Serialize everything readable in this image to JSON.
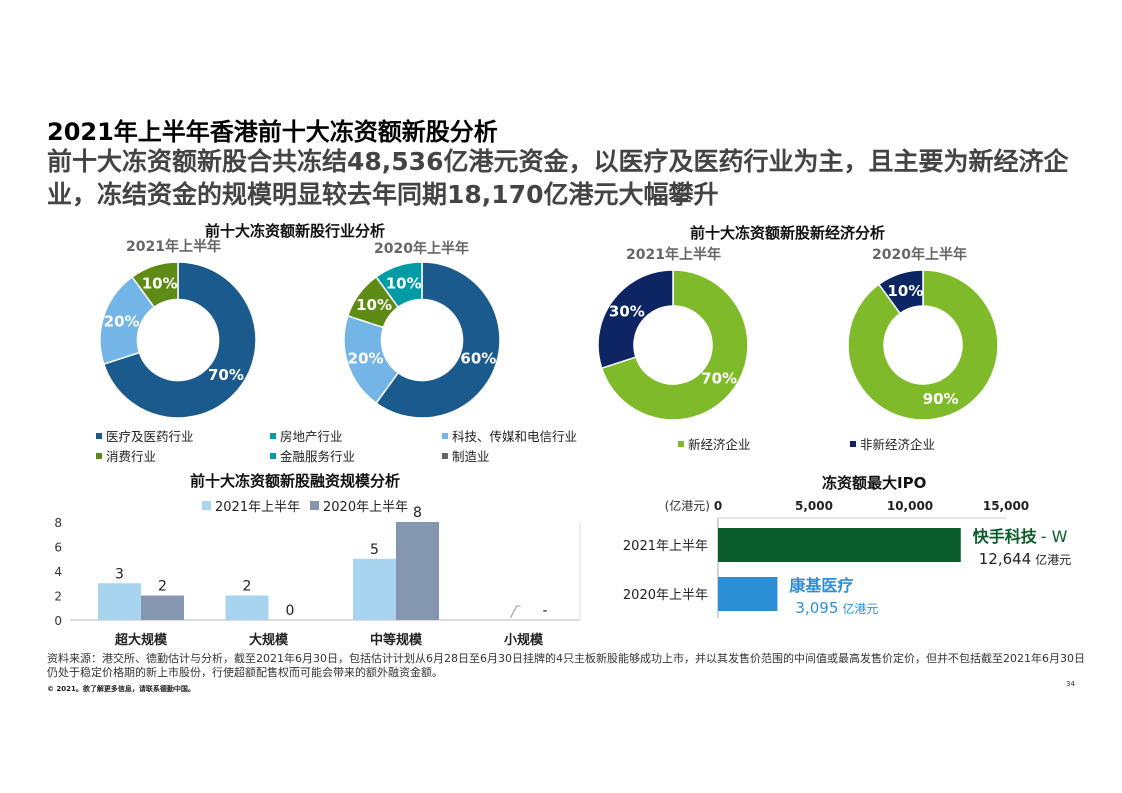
{
  "page": {
    "title": "2021年上半年香港前十大冻资额新股分析",
    "subtitle": "前十大冻资额新股合共冻结48,536亿港元资金，以医疗及医药行业为主，且主要为新经济企业，冻结资金的规模明显较去年同期18,170亿港元大幅攀升",
    "source": "资料来源：港交所、德勤估计与分析，截至2021年6月30日，包括估计计划从6月28日至6月30日挂牌的4只主板新股能够成功上市，并以其发售价范围的中间值或最高发售价定价，但并不包括截至2021年6月30日仍处于稳定价格期的新上市股份，行使超额配售权而可能会带来的额外融资金额。",
    "copyright": "© 2021。欲了解更多信息，请联系德勤中国。",
    "page_number": "34"
  },
  "colors": {
    "medical": "#1a5a8c",
    "real_estate": "#009ba5",
    "tech": "#72b5e6",
    "consumer": "#5e8b16",
    "finance": "#009ba5",
    "manufacturing": "#666666",
    "new_economy": "#7fba2b",
    "non_new_economy": "#0e2563",
    "bar_2021": "#a8d4f0",
    "bar_2020": "#8596b0",
    "ipo_2021": "#0b5c2d",
    "ipo_2020": "#2c8fd6"
  },
  "chart_data": [
    {
      "type": "pie",
      "title": "前十大冻资额新股行业分析",
      "subtitle": "2021年上半年",
      "slices": [
        {
          "label": "医疗及医药行业",
          "value": 70,
          "display": "70%"
        },
        {
          "label": "科技、传媒和电信行业",
          "value": 20,
          "display": "20%"
        },
        {
          "label": "消费行业",
          "value": 10,
          "display": "10%"
        }
      ]
    },
    {
      "type": "pie",
      "title": "前十大冻资额新股行业分析",
      "subtitle": "2020年上半年",
      "slices": [
        {
          "label": "医疗及医药行业",
          "value": 60,
          "display": "60%"
        },
        {
          "label": "科技、传媒和电信行业",
          "value": 20,
          "display": "20%"
        },
        {
          "label": "消费行业",
          "value": 10,
          "display": "10%"
        },
        {
          "label": "金融服务行业",
          "value": 10,
          "display": "10%"
        }
      ]
    },
    {
      "type": "pie",
      "title": "前十大冻资额新股新经济分析",
      "subtitle": "2021年上半年",
      "slices": [
        {
          "label": "新经济企业",
          "value": 70,
          "display": "70%"
        },
        {
          "label": "非新经济企业",
          "value": 30,
          "display": "30%"
        }
      ]
    },
    {
      "type": "pie",
      "title": "前十大冻资额新股新经济分析",
      "subtitle": "2020年上半年",
      "slices": [
        {
          "label": "新经济企业",
          "value": 90,
          "display": "90%"
        },
        {
          "label": "非新经济企业",
          "value": 10,
          "display": "10%"
        }
      ]
    },
    {
      "type": "bar",
      "title": "前十大冻资额新股融资规模分析",
      "categories": [
        "超大规模",
        "大规模",
        "中等规模",
        "小规模"
      ],
      "series": [
        {
          "name": "2021年上半年",
          "values": [
            3,
            2,
            5,
            0
          ],
          "labels": [
            "3",
            "2",
            "5",
            ""
          ]
        },
        {
          "name": "2020年上半年",
          "values": [
            2,
            0,
            8,
            0
          ],
          "labels": [
            "2",
            "0",
            "8",
            "-"
          ]
        }
      ],
      "yticks": [
        "0",
        "2",
        "4",
        "6",
        "8"
      ],
      "ylim": [
        0,
        8
      ],
      "legend": "top"
    },
    {
      "type": "bar",
      "orientation": "horizontal",
      "title": "冻资额最大IPO",
      "unit_label": "(亿港元)",
      "xticks": [
        "0",
        "5,000",
        "10,000",
        "15,000"
      ],
      "xlim": [
        0,
        15000
      ],
      "rows": [
        {
          "category": "2021年上半年",
          "value": 12644,
          "company": "快手科技",
          "suffix": "- W",
          "value_text": "12,644",
          "unit": "亿港元"
        },
        {
          "category": "2020年上半年",
          "value": 3095,
          "company": "康基医疗",
          "suffix": "",
          "value_text": "3,095",
          "unit": "亿港元"
        }
      ]
    }
  ],
  "legends": {
    "industry": [
      {
        "label": "医疗及医药行业",
        "color": "#1a5a8c"
      },
      {
        "label": "房地产行业",
        "color": "#009ba5"
      },
      {
        "label": "科技、传媒和电信行业",
        "color": "#72b5e6"
      },
      {
        "label": "消费行业",
        "color": "#5e8b16"
      },
      {
        "label": "金融服务行业",
        "color": "#009ba5"
      },
      {
        "label": "制造业",
        "color": "#666666"
      }
    ],
    "economy": [
      {
        "label": "新经济企业",
        "color": "#7fba2b"
      },
      {
        "label": "非新经济企业",
        "color": "#0e2563"
      }
    ]
  }
}
